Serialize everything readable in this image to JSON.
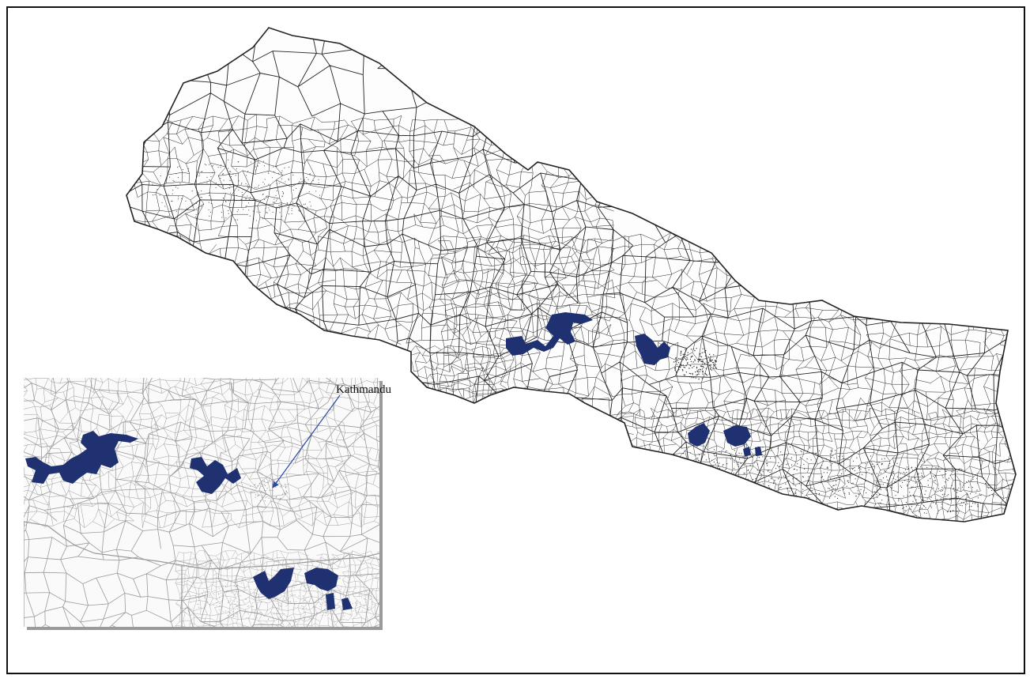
{
  "map": {
    "annotation_label": "Kathmandu",
    "colors": {
      "highlight": "#1f3170",
      "boundary": "#222222",
      "inset_boundary": "#9a9a9a",
      "arrow": "#2a4aa8",
      "inset_shadow": "#9a9a9a"
    },
    "icons": {
      "frame": "map-frame",
      "pointer": "arrow-pointer-icon"
    }
  }
}
